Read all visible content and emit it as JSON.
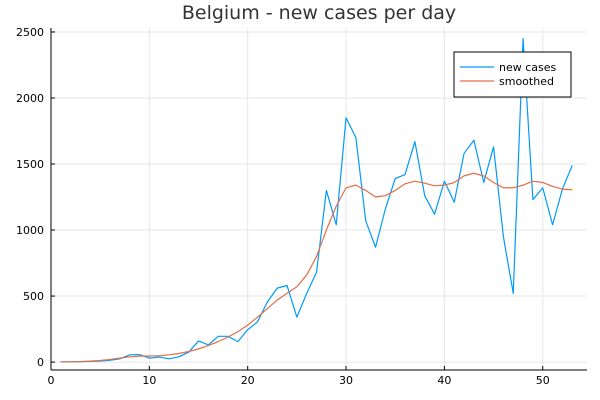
{
  "chart_data": {
    "type": "line",
    "title": "Belgium - new cases per day",
    "xlabel": "",
    "ylabel": "",
    "xlim": [
      0,
      54.5
    ],
    "ylim": [
      -60,
      2530
    ],
    "xticks": [
      0,
      10,
      20,
      30,
      40,
      50
    ],
    "yticks": [
      0,
      500,
      1000,
      1500,
      2000,
      2500
    ],
    "grid": true,
    "legend_position": "top-right",
    "series": [
      {
        "name": "new cases",
        "color": "#009AFA",
        "x": [
          1,
          2,
          3,
          4,
          5,
          6,
          7,
          8,
          9,
          10,
          11,
          12,
          13,
          14,
          15,
          16,
          17,
          18,
          19,
          20,
          21,
          22,
          23,
          24,
          25,
          26,
          27,
          28,
          29,
          30,
          31,
          32,
          33,
          34,
          35,
          36,
          37,
          38,
          39,
          40,
          41,
          42,
          43,
          44,
          45,
          46,
          47,
          48,
          49,
          50,
          51,
          52,
          53
        ],
        "values": [
          2,
          2,
          3,
          5,
          8,
          14,
          25,
          55,
          57,
          30,
          38,
          25,
          40,
          75,
          160,
          130,
          195,
          195,
          155,
          245,
          305,
          455,
          560,
          580,
          340,
          520,
          680,
          1300,
          1040,
          1850,
          1700,
          1070,
          870,
          1160,
          1390,
          1420,
          1670,
          1260,
          1120,
          1370,
          1210,
          1580,
          1680,
          1360,
          1630,
          950,
          520,
          2450,
          1230,
          1320,
          1040,
          1310,
          1490
        ]
      },
      {
        "name": "smoothed",
        "color": "#E26F46",
        "x": [
          1,
          2,
          3,
          4,
          5,
          6,
          7,
          8,
          9,
          10,
          11,
          12,
          13,
          14,
          15,
          16,
          17,
          18,
          19,
          20,
          21,
          22,
          23,
          24,
          25,
          26,
          27,
          28,
          29,
          30,
          31,
          32,
          33,
          34,
          35,
          36,
          37,
          38,
          39,
          40,
          41,
          42,
          43,
          44,
          45,
          46,
          47,
          48,
          49,
          50,
          51,
          52,
          53
        ],
        "values": [
          1,
          2,
          4,
          7,
          12,
          20,
          30,
          40,
          45,
          46,
          48,
          55,
          65,
          80,
          100,
          125,
          155,
          190,
          230,
          280,
          340,
          405,
          470,
          520,
          570,
          660,
          800,
          1000,
          1180,
          1320,
          1340,
          1300,
          1250,
          1260,
          1300,
          1350,
          1370,
          1355,
          1335,
          1340,
          1360,
          1410,
          1430,
          1410,
          1360,
          1320,
          1320,
          1340,
          1370,
          1360,
          1330,
          1310,
          1305
        ]
      }
    ]
  }
}
